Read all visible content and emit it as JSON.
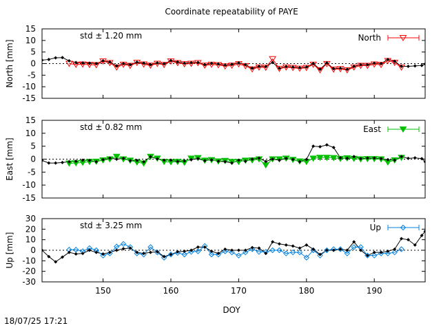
{
  "chart_data": {
    "type": "line",
    "title": "Coordinate repeatability of PAYE",
    "xlabel": "DOY",
    "xlim": [
      141,
      197.5
    ],
    "xticks": [
      150,
      160,
      170,
      180,
      190
    ],
    "timestamp": "18/07/25 17:21",
    "panels": [
      {
        "name": "north",
        "ylabel": "North [mm]",
        "ylim": [
          -15,
          15
        ],
        "yticks": [
          -15,
          -10,
          -5,
          0,
          5,
          10,
          15
        ],
        "std_label": "std ± 1.20 mm",
        "std_color": "#ff0000",
        "legend": "North",
        "color": "#ff0000",
        "marker": "triangle-down-open",
        "series": [
          {
            "name": "North",
            "x": [
              141,
              142,
              143,
              144,
              145,
              146,
              147,
              148,
              149,
              150,
              151,
              152,
              153,
              154,
              155,
              156,
              157,
              158,
              159,
              160,
              161,
              162,
              163,
              164,
              165,
              166,
              167,
              168,
              169,
              170,
              171,
              172,
              173,
              174,
              175,
              176,
              177,
              178,
              179,
              180,
              181,
              182,
              183,
              184,
              185,
              186,
              187,
              188,
              189,
              190,
              191,
              192,
              193,
              194,
              195,
              196,
              197,
              197.5
            ],
            "y": [
              1.5,
              1.8,
              2.5,
              2.6,
              1.2,
              0.5,
              0.3,
              0.2,
              0.0,
              1.2,
              0.7,
              -1.0,
              0.0,
              -0.5,
              0.6,
              0.2,
              -0.5,
              0.3,
              -0.1,
              1.3,
              0.7,
              0.2,
              0.4,
              0.5,
              -0.5,
              0.1,
              -0.2,
              -0.7,
              -0.3,
              0.3,
              -0.5,
              -2.0,
              -1.2,
              -1.3,
              0.5,
              -2.0,
              -1.3,
              -1.5,
              -1.8,
              -1.5,
              0.0,
              -2.5,
              0.3,
              -2.2,
              -2.0,
              -2.5,
              -1.2,
              -0.5,
              -0.5,
              0.2,
              0.0,
              1.8,
              1.0,
              -1.2,
              -1.2,
              -1.0,
              -0.8,
              -0.2
            ]
          },
          {
            "name": "",
            "x": [
              145,
              146,
              147,
              148,
              149,
              150,
              151,
              152,
              153,
              154,
              155,
              156,
              157,
              158,
              159,
              160,
              161,
              162,
              163,
              164,
              165,
              166,
              167,
              168,
              169,
              170,
              171,
              172,
              173,
              174,
              175,
              176,
              177,
              178,
              179,
              180,
              181,
              182,
              183,
              184,
              185,
              186,
              187,
              188,
              189,
              190,
              191,
              192,
              193,
              194
            ],
            "y": [
              0.0,
              -0.4,
              -0.3,
              -0.5,
              -0.6,
              1.0,
              0.3,
              -1.6,
              -0.4,
              -0.9,
              0.4,
              -0.3,
              -0.8,
              0.0,
              -0.5,
              1.0,
              0.3,
              -0.2,
              0.0,
              0.3,
              -0.8,
              -0.4,
              -0.6,
              -1.1,
              -0.8,
              -0.2,
              -1.0,
              -2.4,
              -1.6,
              -1.7,
              2.0,
              -2.2,
              -1.6,
              -1.8,
              -2.1,
              -1.8,
              -0.4,
              -2.8,
              -0.1,
              -2.5,
              -2.3,
              -2.8,
              -1.6,
              -0.9,
              -0.9,
              -0.3,
              -0.5,
              1.2,
              0.4,
              -1.6
            ]
          }
        ]
      },
      {
        "name": "east",
        "ylabel": "East [mm]",
        "ylim": [
          -15,
          15
        ],
        "yticks": [
          -15,
          -10,
          -5,
          0,
          5,
          10,
          15
        ],
        "std_label": "std ± 0.82 mm",
        "std_color": "#00c000",
        "legend": "East",
        "color": "#00c000",
        "marker": "triangle-down-filled",
        "series": [
          {
            "name": "East",
            "x": [
              141,
              142,
              143,
              144,
              145,
              146,
              147,
              148,
              149,
              150,
              151,
              152,
              153,
              154,
              155,
              156,
              157,
              158,
              159,
              160,
              161,
              162,
              163,
              164,
              165,
              166,
              167,
              168,
              169,
              170,
              171,
              172,
              173,
              174,
              175,
              176,
              177,
              178,
              179,
              180,
              181,
              182,
              183,
              184,
              185,
              186,
              187,
              188,
              189,
              190,
              191,
              192,
              193,
              194,
              195,
              196,
              197,
              197.5
            ],
            "y": [
              -0.5,
              -1.5,
              -1.5,
              -1.3,
              -1.0,
              -0.8,
              -0.4,
              -0.5,
              -1.0,
              -0.2,
              0.4,
              0.0,
              0.3,
              -0.6,
              -0.5,
              -1.0,
              0.9,
              0.1,
              -0.4,
              -0.4,
              -0.9,
              -0.7,
              -0.2,
              0.2,
              -0.6,
              -0.3,
              -0.8,
              -1.0,
              -1.5,
              -0.4,
              -0.8,
              0.0,
              0.4,
              -0.9,
              0.0,
              -0.4,
              0.3,
              -0.1,
              -1.0,
              -0.1,
              5.0,
              4.8,
              5.5,
              4.5,
              0.5,
              0.3,
              1.0,
              0.2,
              0.4,
              0.4,
              0.2,
              -0.2,
              -0.4,
              1.0,
              0.3,
              0.5,
              0.2,
              -1.0
            ]
          },
          {
            "name": "",
            "x": [
              145,
              146,
              147,
              148,
              149,
              150,
              151,
              152,
              153,
              154,
              155,
              156,
              157,
              158,
              159,
              160,
              161,
              162,
              163,
              164,
              165,
              166,
              167,
              168,
              169,
              170,
              171,
              172,
              173,
              174,
              175,
              176,
              177,
              178,
              179,
              180,
              181,
              182,
              183,
              184,
              185,
              186,
              187,
              188,
              189,
              190,
              191,
              192,
              193,
              194
            ],
            "y": [
              -1.6,
              -1.5,
              -1.3,
              -1.0,
              -0.9,
              -0.4,
              0.0,
              1.0,
              0.0,
              -0.5,
              -1.2,
              -1.6,
              1.0,
              0.3,
              -1.0,
              -1.1,
              -1.0,
              -1.3,
              0.3,
              0.5,
              -0.5,
              -0.3,
              -0.8,
              -0.6,
              -1.0,
              -1.0,
              -0.5,
              -0.4,
              0.0,
              -2.3,
              0.0,
              0.0,
              0.3,
              -0.2,
              -0.8,
              -1.0,
              0.3,
              0.6,
              0.6,
              0.5,
              0.2,
              0.4,
              0.2,
              0.0,
              0.1,
              0.1,
              0.0,
              -1.2,
              -0.4,
              0.6
            ]
          }
        ]
      },
      {
        "name": "up",
        "ylabel": "Up [mm]",
        "ylim": [
          -30,
          30
        ],
        "yticks": [
          -30,
          -20,
          -10,
          0,
          10,
          20,
          30
        ],
        "std_label": "std ± 3.25 mm",
        "std_color": "#0080e0",
        "legend": "Up",
        "color": "#0080e0",
        "marker": "diamond-open",
        "series": [
          {
            "name": "Up",
            "x": [
              141,
              142,
              143,
              144,
              145,
              146,
              147,
              148,
              149,
              150,
              151,
              152,
              153,
              154,
              155,
              156,
              157,
              158,
              159,
              160,
              161,
              162,
              163,
              164,
              165,
              166,
              167,
              168,
              169,
              170,
              171,
              172,
              173,
              174,
              175,
              176,
              177,
              178,
              179,
              180,
              181,
              182,
              183,
              184,
              185,
              186,
              187,
              188,
              189,
              190,
              191,
              192,
              193,
              194,
              195,
              196,
              197,
              197.5
            ],
            "y": [
              0.0,
              -6.0,
              -11.0,
              -6.5,
              -2.0,
              -3.5,
              -3.0,
              0.0,
              -2.0,
              -3.5,
              -2.0,
              0.0,
              1.5,
              2.0,
              -2.0,
              -3.0,
              -2.0,
              -1.5,
              -6.0,
              -4.0,
              -1.5,
              -1.0,
              0.0,
              3.0,
              3.0,
              -1.0,
              -3.0,
              1.0,
              0.0,
              0.0,
              0.0,
              2.5,
              2.0,
              -3.0,
              8.0,
              6.0,
              5.0,
              4.0,
              2.0,
              5.0,
              1.0,
              -4.0,
              0.0,
              0.0,
              1.0,
              0.0,
              8.0,
              0.0,
              -5.0,
              -2.0,
              -2.0,
              -1.0,
              1.0,
              11.0,
              10.0,
              5.0,
              14.0,
              18.0
            ]
          },
          {
            "name": "",
            "x": [
              145,
              146,
              147,
              148,
              149,
              150,
              151,
              152,
              153,
              154,
              155,
              156,
              157,
              158,
              159,
              160,
              161,
              162,
              163,
              164,
              165,
              166,
              167,
              168,
              169,
              170,
              171,
              172,
              173,
              174,
              175,
              176,
              177,
              178,
              179,
              180,
              181,
              182,
              183,
              184,
              185,
              186,
              187,
              188,
              189,
              190,
              191,
              192,
              193,
              194
            ],
            "y": [
              0.5,
              0.5,
              -1.0,
              2.0,
              0.0,
              -5.0,
              -3.0,
              3.5,
              6.0,
              3.0,
              -3.0,
              -4.0,
              3.0,
              -2.0,
              -7.0,
              -4.0,
              -2.5,
              -4.0,
              -1.5,
              -1.0,
              4.0,
              -4.0,
              -4.0,
              -1.0,
              -2.0,
              -5.0,
              -2.0,
              1.0,
              -1.5,
              -1.5,
              0.0,
              0.0,
              -3.0,
              -2.0,
              -2.0,
              -7.0,
              0.0,
              -5.0,
              0.0,
              1.0,
              1.0,
              -3.0,
              3.0,
              3.0,
              -5.0,
              -5.0,
              -3.0,
              -3.0,
              -2.0,
              1.0
            ]
          }
        ]
      }
    ]
  }
}
